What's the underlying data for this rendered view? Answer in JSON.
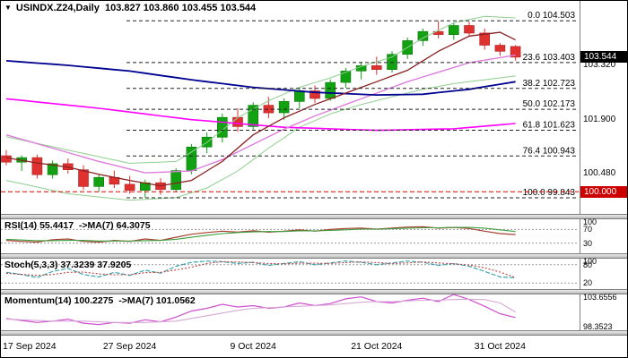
{
  "header": {
    "collapse_icon": "▼",
    "title": "USINDX.Z24,Daily  103.827 103.860 103.455 103.544"
  },
  "price_axis": {
    "grid_labels": [
      {
        "text": "103.320",
        "price": 103.32
      },
      {
        "text": "101.900",
        "price": 101.9
      },
      {
        "text": "100.480",
        "price": 100.48
      }
    ],
    "current": {
      "text": "103.544",
      "price": 103.544,
      "bg": "#000000"
    },
    "alert": {
      "text": "100.000",
      "price": 100.0,
      "bg": "#cc0000"
    }
  },
  "panels": [
    {
      "id": "rsi",
      "header": "RSI(14) 55.4417  ->MA(7) 64.3075",
      "axis_labels": [
        {
          "text": "100",
          "value": 100
        },
        {
          "text": "70",
          "value": 70
        },
        {
          "text": "30",
          "value": 30
        }
      ]
    },
    {
      "id": "stoch",
      "header": "Stoch(5,3,3) 37.3239 37.9205",
      "axis_labels": [
        {
          "text": "100",
          "value": 100
        },
        {
          "text": "80",
          "value": 80
        },
        {
          "text": "20",
          "value": 20
        }
      ]
    },
    {
      "id": "momentum",
      "header": "Momentum(14) 100.2275  ->MA(7) 101.0562",
      "axis_labels": [
        {
          "text": "103.6556",
          "value": 103.6556
        },
        {
          "text": "98.3523",
          "value": 98.3523
        }
      ]
    }
  ],
  "chart_data": {
    "type": "candlestick",
    "symbol": "USINDX.Z24",
    "timeframe": "Daily",
    "last_ohlc": {
      "open": 103.827,
      "high": 103.86,
      "low": 103.455,
      "close": 103.544
    },
    "colors": {
      "up": "#12a112",
      "down": "#e03131",
      "upEdge": "#0a7a0a",
      "downEdge": "#aa2020"
    },
    "candles": [
      [
        100.95,
        101.1,
        100.7,
        100.78
      ],
      [
        100.78,
        100.96,
        100.55,
        100.9
      ],
      [
        100.9,
        100.98,
        100.35,
        100.45
      ],
      [
        100.45,
        100.82,
        100.35,
        100.74
      ],
      [
        100.74,
        100.88,
        100.48,
        100.58
      ],
      [
        100.58,
        100.7,
        100.05,
        100.14
      ],
      [
        100.14,
        100.46,
        100.0,
        100.38
      ],
      [
        100.38,
        100.56,
        100.1,
        100.2
      ],
      [
        100.2,
        100.42,
        99.95,
        100.04
      ],
      [
        100.04,
        100.32,
        99.85,
        100.24
      ],
      [
        100.24,
        100.36,
        99.92,
        100.06
      ],
      [
        100.06,
        100.62,
        100.0,
        100.56
      ],
      [
        100.56,
        101.26,
        100.46,
        101.18
      ],
      [
        101.18,
        101.56,
        101.02,
        101.44
      ],
      [
        101.44,
        102.06,
        101.3,
        101.96
      ],
      [
        101.96,
        102.2,
        101.58,
        101.72
      ],
      [
        101.72,
        102.36,
        101.64,
        102.28
      ],
      [
        102.28,
        102.5,
        101.94,
        102.08
      ],
      [
        102.08,
        102.46,
        101.9,
        102.38
      ],
      [
        102.38,
        102.76,
        102.2,
        102.66
      ],
      [
        102.66,
        102.8,
        102.34,
        102.46
      ],
      [
        102.46,
        102.96,
        102.4,
        102.88
      ],
      [
        102.88,
        103.26,
        102.74,
        103.18
      ],
      [
        103.18,
        103.42,
        102.96,
        103.32
      ],
      [
        103.32,
        103.56,
        103.08,
        103.22
      ],
      [
        103.22,
        103.7,
        103.14,
        103.62
      ],
      [
        103.62,
        104.06,
        103.5,
        103.98
      ],
      [
        103.98,
        104.3,
        103.84,
        104.22
      ],
      [
        104.22,
        104.5,
        104.04,
        104.14
      ],
      [
        104.14,
        104.46,
        104.0,
        104.38
      ],
      [
        104.38,
        104.48,
        104.08,
        104.18
      ],
      [
        104.18,
        104.3,
        103.74,
        103.86
      ],
      [
        103.86,
        103.92,
        103.58,
        103.7
      ],
      [
        103.827,
        103.86,
        103.455,
        103.544
      ]
    ],
    "date_ticks": [
      {
        "idx": 0,
        "label": "17 Sep 2024"
      },
      {
        "idx": 8,
        "label": "27 Sep 2024"
      },
      {
        "idx": 16,
        "label": "9 Oct 2024"
      },
      {
        "idx": 24,
        "label": "21 Oct 2024"
      },
      {
        "idx": 32,
        "label": "31 Oct 2024"
      }
    ],
    "fib_levels": [
      {
        "label": "0.0 104.503",
        "price": 104.503
      },
      {
        "label": "23.6 103.403",
        "price": 103.403
      },
      {
        "label": "38.2 102.723",
        "price": 102.723
      },
      {
        "label": "50.0 102.173",
        "price": 102.173
      },
      {
        "label": "61.8 101.623",
        "price": 101.623
      },
      {
        "label": "76.4 100.943",
        "price": 100.943
      },
      {
        "label": "100.0 99.843",
        "price": 99.843
      }
    ],
    "alert_line": {
      "price": 100.0,
      "color": "#dd0000"
    },
    "overlays": [
      {
        "name": "band-upper",
        "color": "#8fce8f",
        "width": 1,
        "points": [
          [
            0,
            101.45
          ],
          [
            4,
            101.1
          ],
          [
            8,
            100.75
          ],
          [
            11,
            100.8
          ],
          [
            13,
            101.3
          ],
          [
            15,
            101.95
          ],
          [
            17,
            102.4
          ],
          [
            19,
            102.75
          ],
          [
            21,
            103.0
          ],
          [
            23,
            103.3
          ],
          [
            25,
            103.55
          ],
          [
            27,
            104.05
          ],
          [
            29,
            104.45
          ],
          [
            31,
            104.62
          ],
          [
            33,
            104.58
          ]
        ]
      },
      {
        "name": "band-lower",
        "color": "#8fce8f",
        "width": 1,
        "points": [
          [
            0,
            100.3
          ],
          [
            4,
            99.95
          ],
          [
            8,
            99.78
          ],
          [
            11,
            99.85
          ],
          [
            13,
            100.1
          ],
          [
            15,
            100.55
          ],
          [
            17,
            101.15
          ],
          [
            19,
            101.7
          ],
          [
            21,
            102.05
          ],
          [
            23,
            102.3
          ],
          [
            25,
            102.5
          ],
          [
            27,
            102.7
          ],
          [
            29,
            102.85
          ],
          [
            31,
            102.95
          ],
          [
            33,
            103.05
          ]
        ]
      },
      {
        "name": "magenta-ma",
        "color": "#ff00ff",
        "width": 1.6,
        "points": [
          [
            0,
            102.45
          ],
          [
            6,
            102.2
          ],
          [
            12,
            101.9
          ],
          [
            18,
            101.7
          ],
          [
            24,
            101.62
          ],
          [
            29,
            101.66
          ],
          [
            33,
            101.8
          ]
        ]
      },
      {
        "name": "violet-ma",
        "color": "#dd7edd",
        "width": 1.4,
        "points": [
          [
            0,
            101.5
          ],
          [
            3,
            101.15
          ],
          [
            6,
            100.8
          ],
          [
            9,
            100.5
          ],
          [
            12,
            100.55
          ],
          [
            14,
            100.85
          ],
          [
            16,
            101.25
          ],
          [
            18,
            101.65
          ],
          [
            20,
            102.0
          ],
          [
            22,
            102.3
          ],
          [
            24,
            102.6
          ],
          [
            26,
            102.9
          ],
          [
            28,
            103.15
          ],
          [
            30,
            103.4
          ],
          [
            33,
            103.6
          ]
        ]
      },
      {
        "name": "blue-ma",
        "color": "#000090",
        "width": 1.8,
        "points": [
          [
            0,
            103.45
          ],
          [
            4,
            103.33
          ],
          [
            8,
            103.18
          ],
          [
            12,
            102.95
          ],
          [
            16,
            102.75
          ],
          [
            20,
            102.62
          ],
          [
            24,
            102.55
          ],
          [
            27,
            102.57
          ],
          [
            30,
            102.7
          ],
          [
            33,
            102.9
          ]
        ]
      },
      {
        "name": "maroon-ma",
        "color": "#8b2020",
        "width": 1.3,
        "points": [
          [
            0,
            100.9
          ],
          [
            2,
            100.76
          ],
          [
            4,
            100.65
          ],
          [
            6,
            100.46
          ],
          [
            8,
            100.3
          ],
          [
            10,
            100.16
          ],
          [
            12,
            100.3
          ],
          [
            14,
            100.8
          ],
          [
            16,
            101.5
          ],
          [
            18,
            101.95
          ],
          [
            20,
            102.3
          ],
          [
            22,
            102.6
          ],
          [
            24,
            102.9
          ],
          [
            26,
            103.2
          ],
          [
            28,
            103.7
          ],
          [
            30,
            104.1
          ],
          [
            32,
            104.2
          ],
          [
            33,
            104.0
          ]
        ]
      }
    ],
    "indicators": {
      "rsi": {
        "range": [
          0,
          100
        ],
        "levels": [
          70,
          30
        ],
        "series": [
          {
            "name": "rsi-main",
            "color": "#a84032",
            "width": 1.2,
            "values": [
              38,
              35,
              33,
              40,
              42,
              35,
              33,
              38,
              35,
              42,
              38,
              47,
              56,
              61,
              65,
              62,
              66,
              62,
              65,
              69,
              65,
              70,
              73,
              74,
              71,
              74,
              77,
              78,
              74,
              76,
              73,
              65,
              58,
              55
            ]
          },
          {
            "name": "rsi-ma",
            "color": "#3f9e3f",
            "width": 1.1,
            "values": [
              41,
              39,
              37,
              37,
              38,
              38,
              36,
              36,
              36,
              37,
              38,
              41,
              47,
              53,
              58,
              61,
              63,
              64,
              64,
              66,
              66,
              67,
              69,
              71,
              71,
              72,
              74,
              75,
              75,
              76,
              76,
              74,
              69,
              64
            ]
          }
        ]
      },
      "stoch": {
        "range": [
          0,
          100
        ],
        "levels": [
          80,
          20
        ],
        "series": [
          {
            "name": "stoch-main",
            "color": "#3aa6b0",
            "width": 1.2,
            "dash": "5 2",
            "values": [
              55,
              48,
              38,
              58,
              68,
              48,
              40,
              55,
              45,
              62,
              52,
              75,
              88,
              92,
              90,
              84,
              88,
              78,
              84,
              90,
              80,
              86,
              92,
              88,
              80,
              86,
              92,
              88,
              78,
              84,
              75,
              58,
              40,
              37
            ]
          },
          {
            "name": "stoch-signal",
            "color": "#c04040",
            "width": 1.1,
            "dash": "2 2",
            "values": [
              52,
              48,
              45,
              48,
              55,
              56,
              50,
              47,
              47,
              54,
              55,
              63,
              72,
              84,
              90,
              89,
              87,
              84,
              83,
              85,
              85,
              84,
              87,
              89,
              87,
              84,
              86,
              89,
              86,
              83,
              79,
              70,
              56,
              38
            ]
          }
        ]
      },
      "momentum": {
        "range": [
          98.3523,
          103.6556
        ],
        "levels": [],
        "series": [
          {
            "name": "momentum-main",
            "color": "#cf4fcf",
            "width": 1.2,
            "values": [
              100.1,
              99.8,
              99.5,
              99.7,
              100.0,
              99.4,
              99.2,
              99.5,
              99.4,
              99.9,
              99.6,
              100.3,
              101.2,
              101.6,
              102.2,
              101.8,
              102.0,
              101.6,
              101.8,
              102.4,
              102.0,
              102.3,
              103.0,
              103.3,
              102.6,
              102.4,
              102.8,
              103.1,
              102.6,
              103.65,
              102.9,
              101.9,
              100.8,
              100.23
            ]
          },
          {
            "name": "momentum-ma",
            "color": "#d8a8d8",
            "width": 1.1,
            "values": [
              100.0,
              99.9,
              99.8,
              99.7,
              99.7,
              99.7,
              99.6,
              99.5,
              99.5,
              99.5,
              99.6,
              99.7,
              100.1,
              100.5,
              100.9,
              101.3,
              101.6,
              101.7,
              101.8,
              101.9,
              102.0,
              102.1,
              102.3,
              102.5,
              102.6,
              102.6,
              102.7,
              102.8,
              102.8,
              102.9,
              102.95,
              102.9,
              102.4,
              101.06
            ]
          }
        ]
      }
    }
  }
}
